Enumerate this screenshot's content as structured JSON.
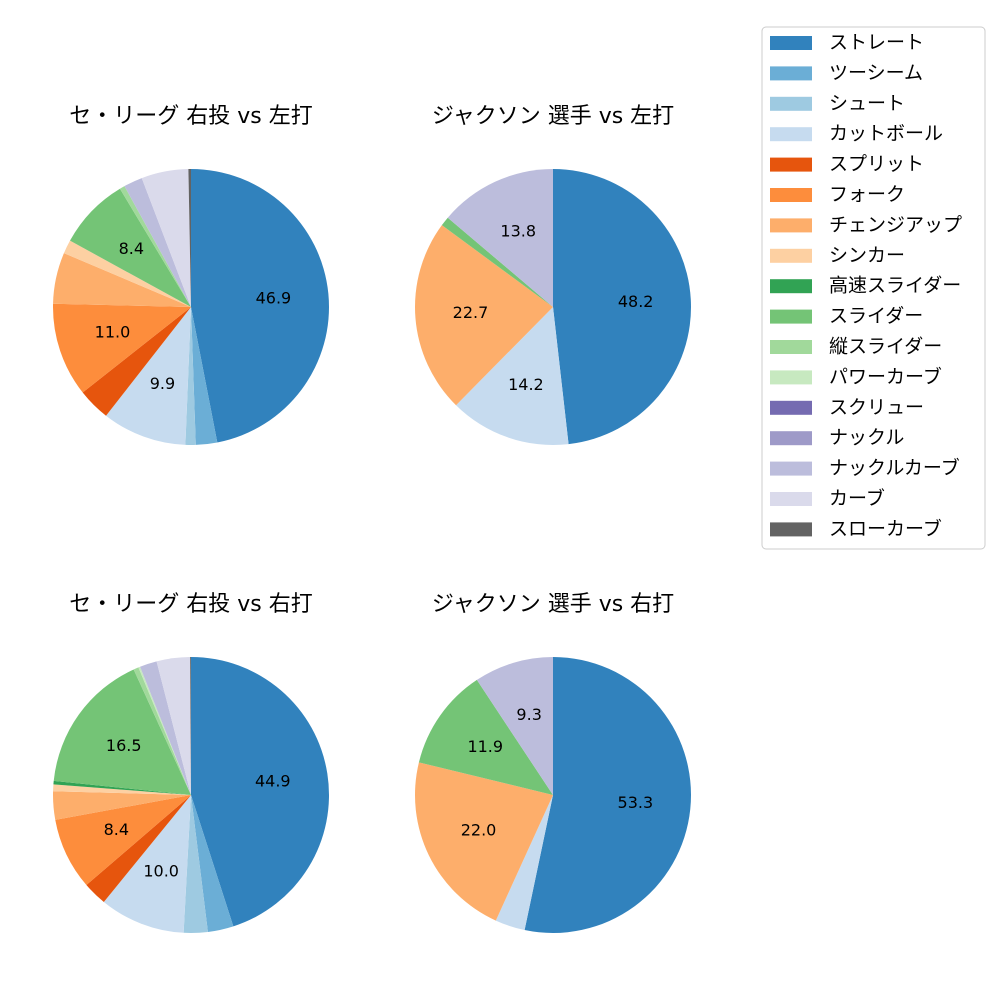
{
  "legend": {
    "categories": [
      "ストレート",
      "ツーシーム",
      "シュート",
      "カットボール",
      "スプリット",
      "フォーク",
      "チェンジアップ",
      "シンカー",
      "高速スライダー",
      "スライダー",
      "縦スライダー",
      "パワーカーブ",
      "スクリュー",
      "ナックル",
      "ナックルカーブ",
      "カーブ",
      "スローカーブ"
    ],
    "colors": [
      "#3182bd",
      "#6baed6",
      "#9ecae1",
      "#c6dbef",
      "#e6550d",
      "#fd8d3c",
      "#fdae6b",
      "#fdd0a2",
      "#31a354",
      "#74c476",
      "#a1d99b",
      "#c7e9c0",
      "#756bb1",
      "#9e9ac8",
      "#bcbddc",
      "#dadaeb",
      "#636363"
    ]
  },
  "chart_data": [
    {
      "type": "pie",
      "title": "セ・リーグ 右投 vs 左打",
      "values": [
        46.9,
        2.5,
        1.2,
        9.9,
        3.8,
        11.0,
        6.0,
        1.6,
        0,
        8.4,
        0.6,
        0,
        0,
        0,
        2.2,
        5.5,
        0.3
      ],
      "value_labels": [
        "46.9",
        null,
        null,
        "9.9",
        null,
        "11.0",
        null,
        null,
        null,
        "8.4",
        null,
        null,
        null,
        null,
        null,
        null,
        null
      ]
    },
    {
      "type": "pie",
      "title": "ジャクソン 選手 vs 左打",
      "values": [
        48.2,
        0,
        0,
        14.2,
        0,
        0,
        22.7,
        0,
        0,
        1.1,
        0,
        0,
        0,
        0,
        13.8,
        0,
        0
      ],
      "value_labels": [
        "48.2",
        null,
        null,
        "14.2",
        null,
        null,
        "22.7",
        null,
        null,
        null,
        null,
        null,
        null,
        null,
        "13.8",
        null,
        null
      ]
    },
    {
      "type": "pie",
      "title": "セ・リーグ 右投 vs 右打",
      "values": [
        44.9,
        3.0,
        2.8,
        10.0,
        2.8,
        8.4,
        3.3,
        0.8,
        0.4,
        16.5,
        0.6,
        0.2,
        0,
        0,
        2.0,
        3.9,
        0.1
      ],
      "value_labels": [
        "44.9",
        null,
        null,
        "10.0",
        null,
        "8.4",
        null,
        null,
        null,
        "16.5",
        null,
        null,
        null,
        null,
        null,
        null,
        null
      ]
    },
    {
      "type": "pie",
      "title": "ジャクソン 選手 vs 右打",
      "values": [
        53.3,
        0,
        0,
        3.5,
        0,
        0,
        22.0,
        0,
        0,
        11.9,
        0,
        0,
        0,
        0,
        9.3,
        0,
        0
      ],
      "value_labels": [
        "53.3",
        null,
        null,
        null,
        null,
        null,
        "22.0",
        null,
        null,
        "11.9",
        null,
        null,
        null,
        null,
        "9.3",
        null,
        null
      ]
    }
  ]
}
